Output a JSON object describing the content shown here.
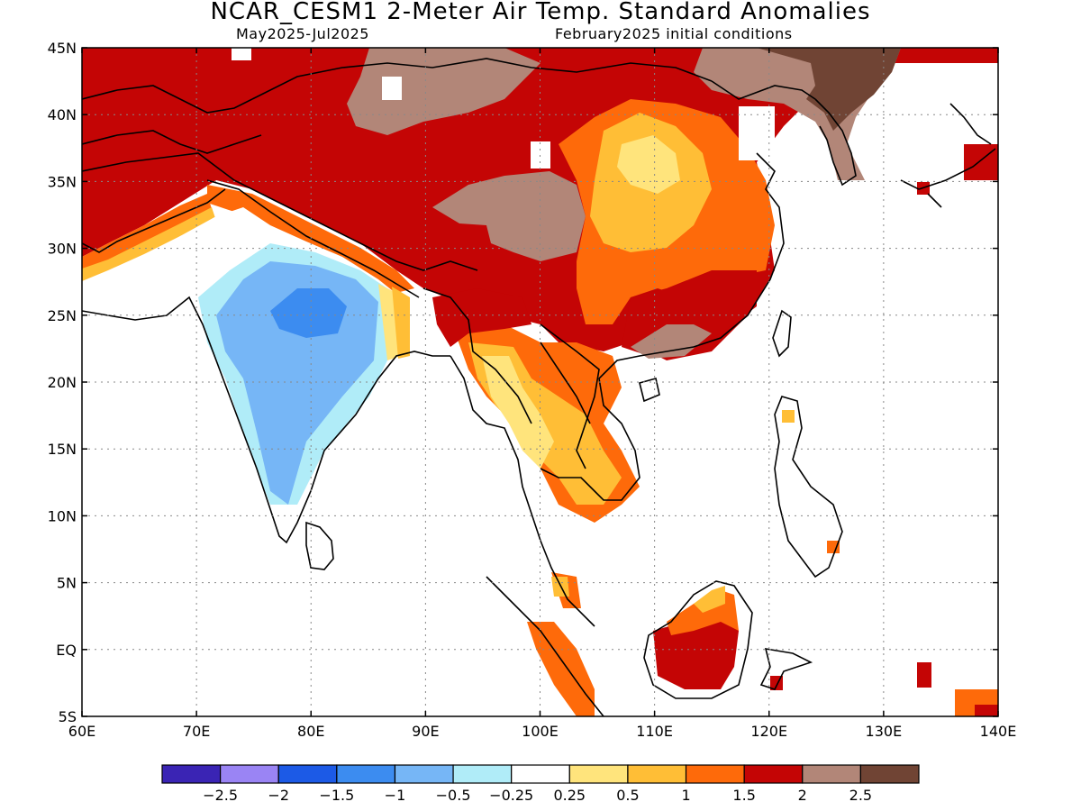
{
  "header": {
    "title": "NCAR_CESM1 2-Meter Air Temp. Standard Anomalies",
    "period": "May2025-Jul2025",
    "init": "February2025 initial conditions"
  },
  "map": {
    "projection": "lat-lon",
    "lon_range": [
      60,
      140
    ],
    "lat_range": [
      -5,
      45
    ],
    "grid": "dotted",
    "lon_labels": [
      "60E",
      "70E",
      "80E",
      "90E",
      "100E",
      "110E",
      "120E",
      "130E",
      "140E"
    ],
    "lat_labels": [
      "45N",
      "40N",
      "35N",
      "30N",
      "25N",
      "20N",
      "15N",
      "10N",
      "5N",
      "EQ",
      "5S"
    ],
    "regions": [
      {
        "name": "tibetan-plateau-region",
        "category": "1.5-2"
      },
      {
        "name": "mongolia-region",
        "category": "2-2.5"
      },
      {
        "name": "northeast-china-korea-region",
        "category": "2.5+"
      },
      {
        "name": "central-china-region",
        "category": "0.5-1.5"
      },
      {
        "name": "india-region",
        "category": "-1.5 to -0.25"
      },
      {
        "name": "indochina-region",
        "category": "0.25-1"
      },
      {
        "name": "borneo-region",
        "category": "1.5-2"
      }
    ]
  },
  "colorbar": {
    "colors": [
      "#3a24b4",
      "#9a84f4",
      "#1c5ae6",
      "#3c8cf0",
      "#76b6f6",
      "#b0ecf8",
      "#ffffff",
      "#ffe47c",
      "#ffbe36",
      "#fe6a0a",
      "#c40505",
      "#b28678",
      "#704434"
    ],
    "labels": [
      "-2.5",
      "-2",
      "-1.5",
      "-1",
      "-0.5",
      "-0.25",
      "0.25",
      "0.5",
      "1",
      "1.5",
      "2",
      "2.5"
    ]
  }
}
